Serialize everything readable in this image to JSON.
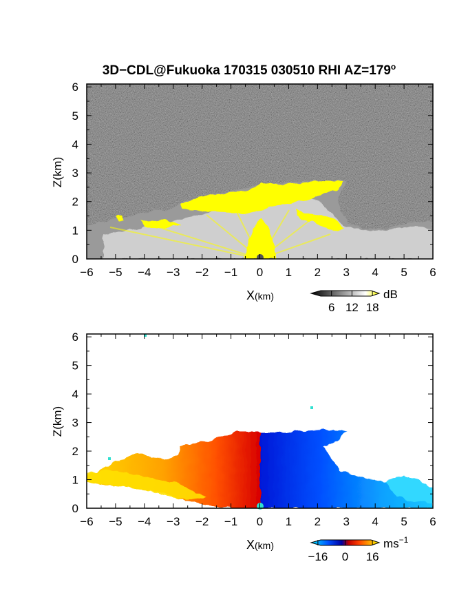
{
  "title": "3D−CDL@Fukuoka 170315 030510 RHI AZ=179",
  "title_sup": "o",
  "chart_data": [
    {
      "type": "heatmap",
      "quantity": "backscatter intensity",
      "xlabel": "X",
      "xlabel_unit": "(km)",
      "ylabel": "Z(km)",
      "xlim": [
        -6,
        6
      ],
      "ylim": [
        0,
        6.1
      ],
      "xticks": [
        "−6",
        "−5",
        "−4",
        "−3",
        "−2",
        "−1",
        "0",
        "1",
        "2",
        "3",
        "4",
        "5",
        "6"
      ],
      "yticks": [
        "0",
        "1",
        "2",
        "3",
        "4",
        "5",
        "6"
      ],
      "background": "noise (dark gray)",
      "colorbar": {
        "ticks": [
          "6",
          "12",
          "18"
        ],
        "tick_values": [
          6,
          12,
          18
        ],
        "range": [
          0,
          20
        ],
        "unit": "dB",
        "colors": [
          "#000000",
          "#ffffff",
          "#ffff00"
        ]
      },
      "echo_region": {
        "top_height_km": [
          [
            -6.0,
            1.2
          ],
          [
            -5.0,
            1.4
          ],
          [
            -4.0,
            1.7
          ],
          [
            -3.0,
            1.8
          ],
          [
            -2.5,
            2.0
          ],
          [
            -1.5,
            2.3
          ],
          [
            0.0,
            2.5
          ],
          [
            1.0,
            2.6
          ],
          [
            2.0,
            2.6
          ],
          [
            3.0,
            2.7
          ],
          [
            3.2,
            2.7
          ],
          [
            2.8,
            2.1
          ],
          [
            3.0,
            1.3
          ],
          [
            3.5,
            1.0
          ],
          [
            4.5,
            1.0
          ],
          [
            5.5,
            1.1
          ],
          [
            6.0,
            1.2
          ]
        ],
        "strong_echo_color": "#ffff00"
      }
    },
    {
      "type": "heatmap",
      "quantity": "radial velocity",
      "xlabel": "X",
      "xlabel_unit": "(km)",
      "ylabel": "Z(km)",
      "xlim": [
        -6,
        6
      ],
      "ylim": [
        0,
        6.1
      ],
      "xticks": [
        "−6",
        "−5",
        "−4",
        "−3",
        "−2",
        "−1",
        "0",
        "1",
        "2",
        "3",
        "4",
        "5",
        "6"
      ],
      "yticks": [
        "0",
        "1",
        "2",
        "3",
        "4",
        "5",
        "6"
      ],
      "background": "white",
      "colorbar": {
        "ticks": [
          "−16",
          "0",
          "16"
        ],
        "tick_values": [
          -16,
          0,
          16
        ],
        "range": [
          -20,
          20
        ],
        "unit": "ms",
        "unit_sup": "−1",
        "colors": [
          "#00e5ff",
          "#0050ff",
          "#0000a0",
          "#c00000",
          "#ff4000",
          "#ffa000",
          "#ffff00"
        ]
      },
      "velocity_sign": {
        "x_negative": "positive (red/orange/yellow)",
        "x_positive": "negative (blue/cyan)"
      }
    }
  ]
}
